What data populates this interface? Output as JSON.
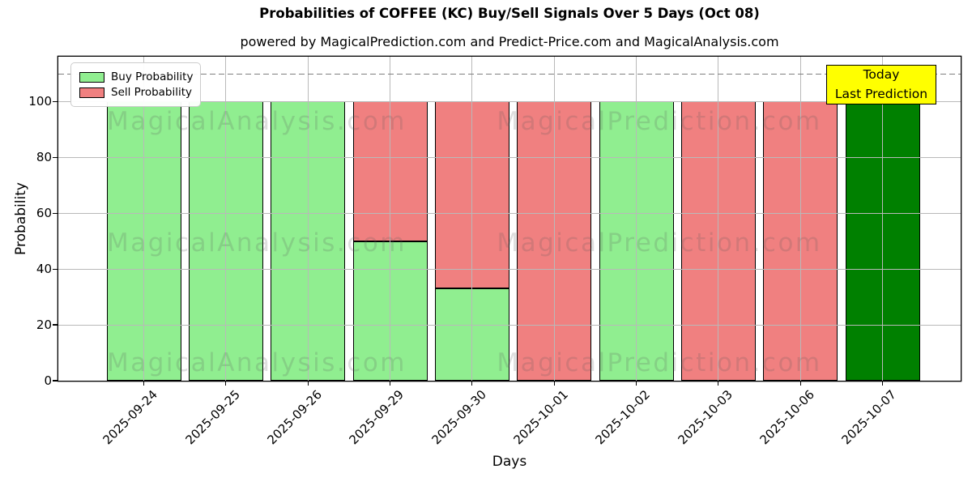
{
  "title": "Probabilities of COFFEE (KC) Buy/Sell Signals Over 5 Days (Oct 08)",
  "subtitle": "powered by MagicalPrediction.com and Predict-Price.com and MagicalAnalysis.com",
  "axes": {
    "ylabel": "Probability",
    "xlabel": "Days"
  },
  "legend": {
    "items": [
      {
        "label": "Buy Probability",
        "color": "#90EE90"
      },
      {
        "label": "Sell Probability",
        "color": "#F08080"
      }
    ]
  },
  "annotation": {
    "line1": "Today",
    "line2": "Last Prediction",
    "bg_color": "#FFFF00",
    "border_color": "#000000"
  },
  "watermarks": {
    "left": "MagicalAnalysis.com",
    "right": "MagicalPrediction.com"
  },
  "chart_data": {
    "type": "bar",
    "stacked": true,
    "title": "Probabilities of COFFEE (KC) Buy/Sell Signals Over 5 Days (Oct 08)",
    "xlabel": "Days",
    "ylabel": "Probability",
    "categories": [
      "2025-09-24",
      "2025-09-25",
      "2025-09-26",
      "2025-09-29",
      "2025-09-30",
      "2025-10-01",
      "2025-10-02",
      "2025-10-03",
      "2025-10-06",
      "2025-10-07"
    ],
    "series": [
      {
        "name": "Buy Probability",
        "color": "#90EE90",
        "values": [
          100,
          100,
          100,
          50,
          33,
          0,
          100,
          0,
          0,
          100
        ]
      },
      {
        "name": "Sell Probability",
        "color": "#F08080",
        "values": [
          0,
          0,
          0,
          50,
          67,
          100,
          0,
          100,
          100,
          0
        ]
      }
    ],
    "today_bar": {
      "category": "2025-10-07",
      "index": 9,
      "color": "#008000",
      "value": 100
    },
    "yticks": [
      0,
      20,
      40,
      60,
      80,
      100
    ],
    "ylim": [
      0,
      116
    ],
    "dashed_line_y": 110,
    "grid": true,
    "legend_position": "upper left",
    "bar_edge_color": "#000000",
    "grid_color": "#b9b9b9",
    "dashed_line_color": "#7f7f7f"
  }
}
